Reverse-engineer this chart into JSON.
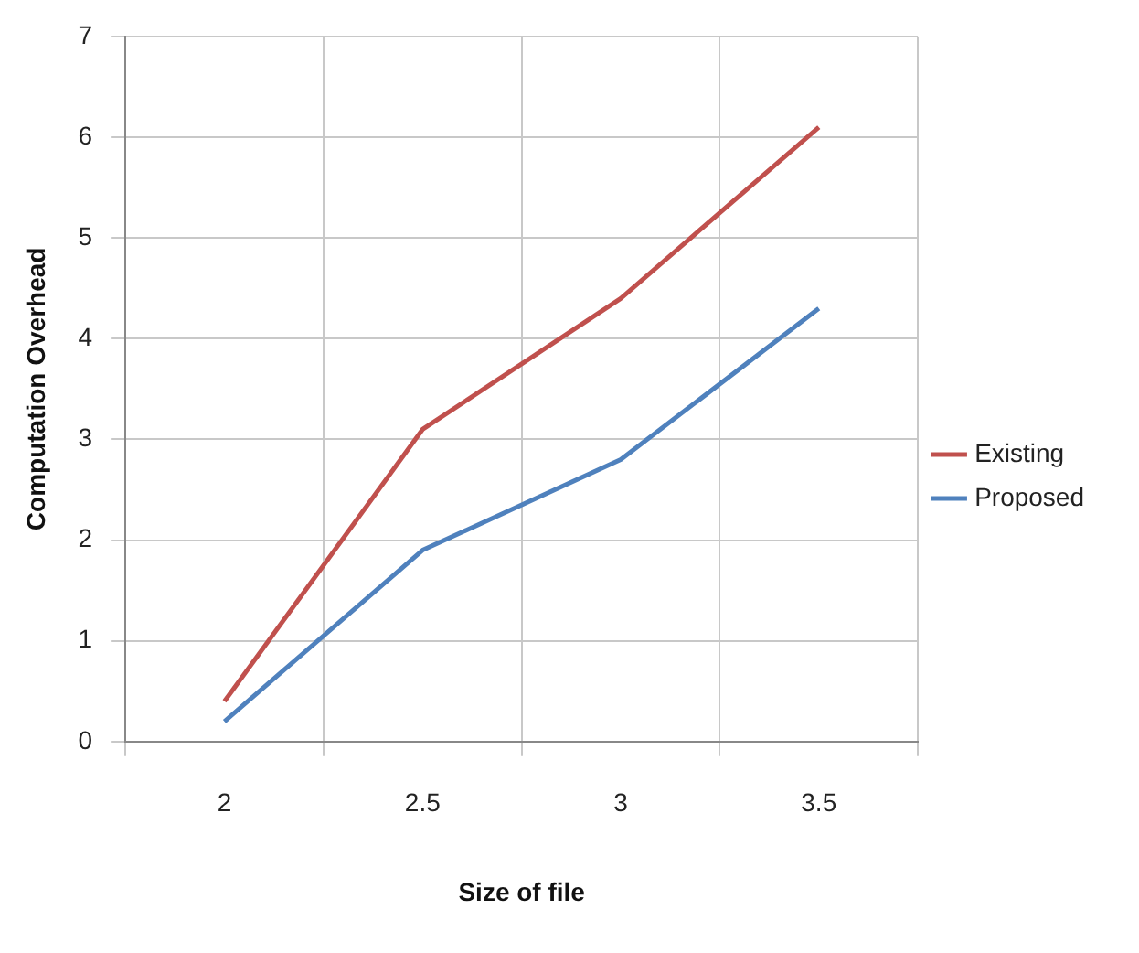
{
  "chart_data": {
    "type": "line",
    "xlabel": "Size of file",
    "ylabel": "Computation Overhead",
    "categories": [
      "2",
      "2.5",
      "3",
      "3.5"
    ],
    "series": [
      {
        "name": "Existing",
        "color": "#c0504d",
        "values": [
          0.4,
          3.1,
          4.4,
          6.1
        ]
      },
      {
        "name": "Proposed",
        "color": "#4f81bd",
        "values": [
          0.2,
          1.9,
          2.8,
          4.3
        ]
      }
    ],
    "ylim": [
      0,
      7
    ],
    "yticks": [
      0,
      1,
      2,
      3,
      4,
      5,
      6,
      7
    ],
    "grid": true,
    "legend": "right",
    "marker": "none",
    "line_style": "solid"
  }
}
